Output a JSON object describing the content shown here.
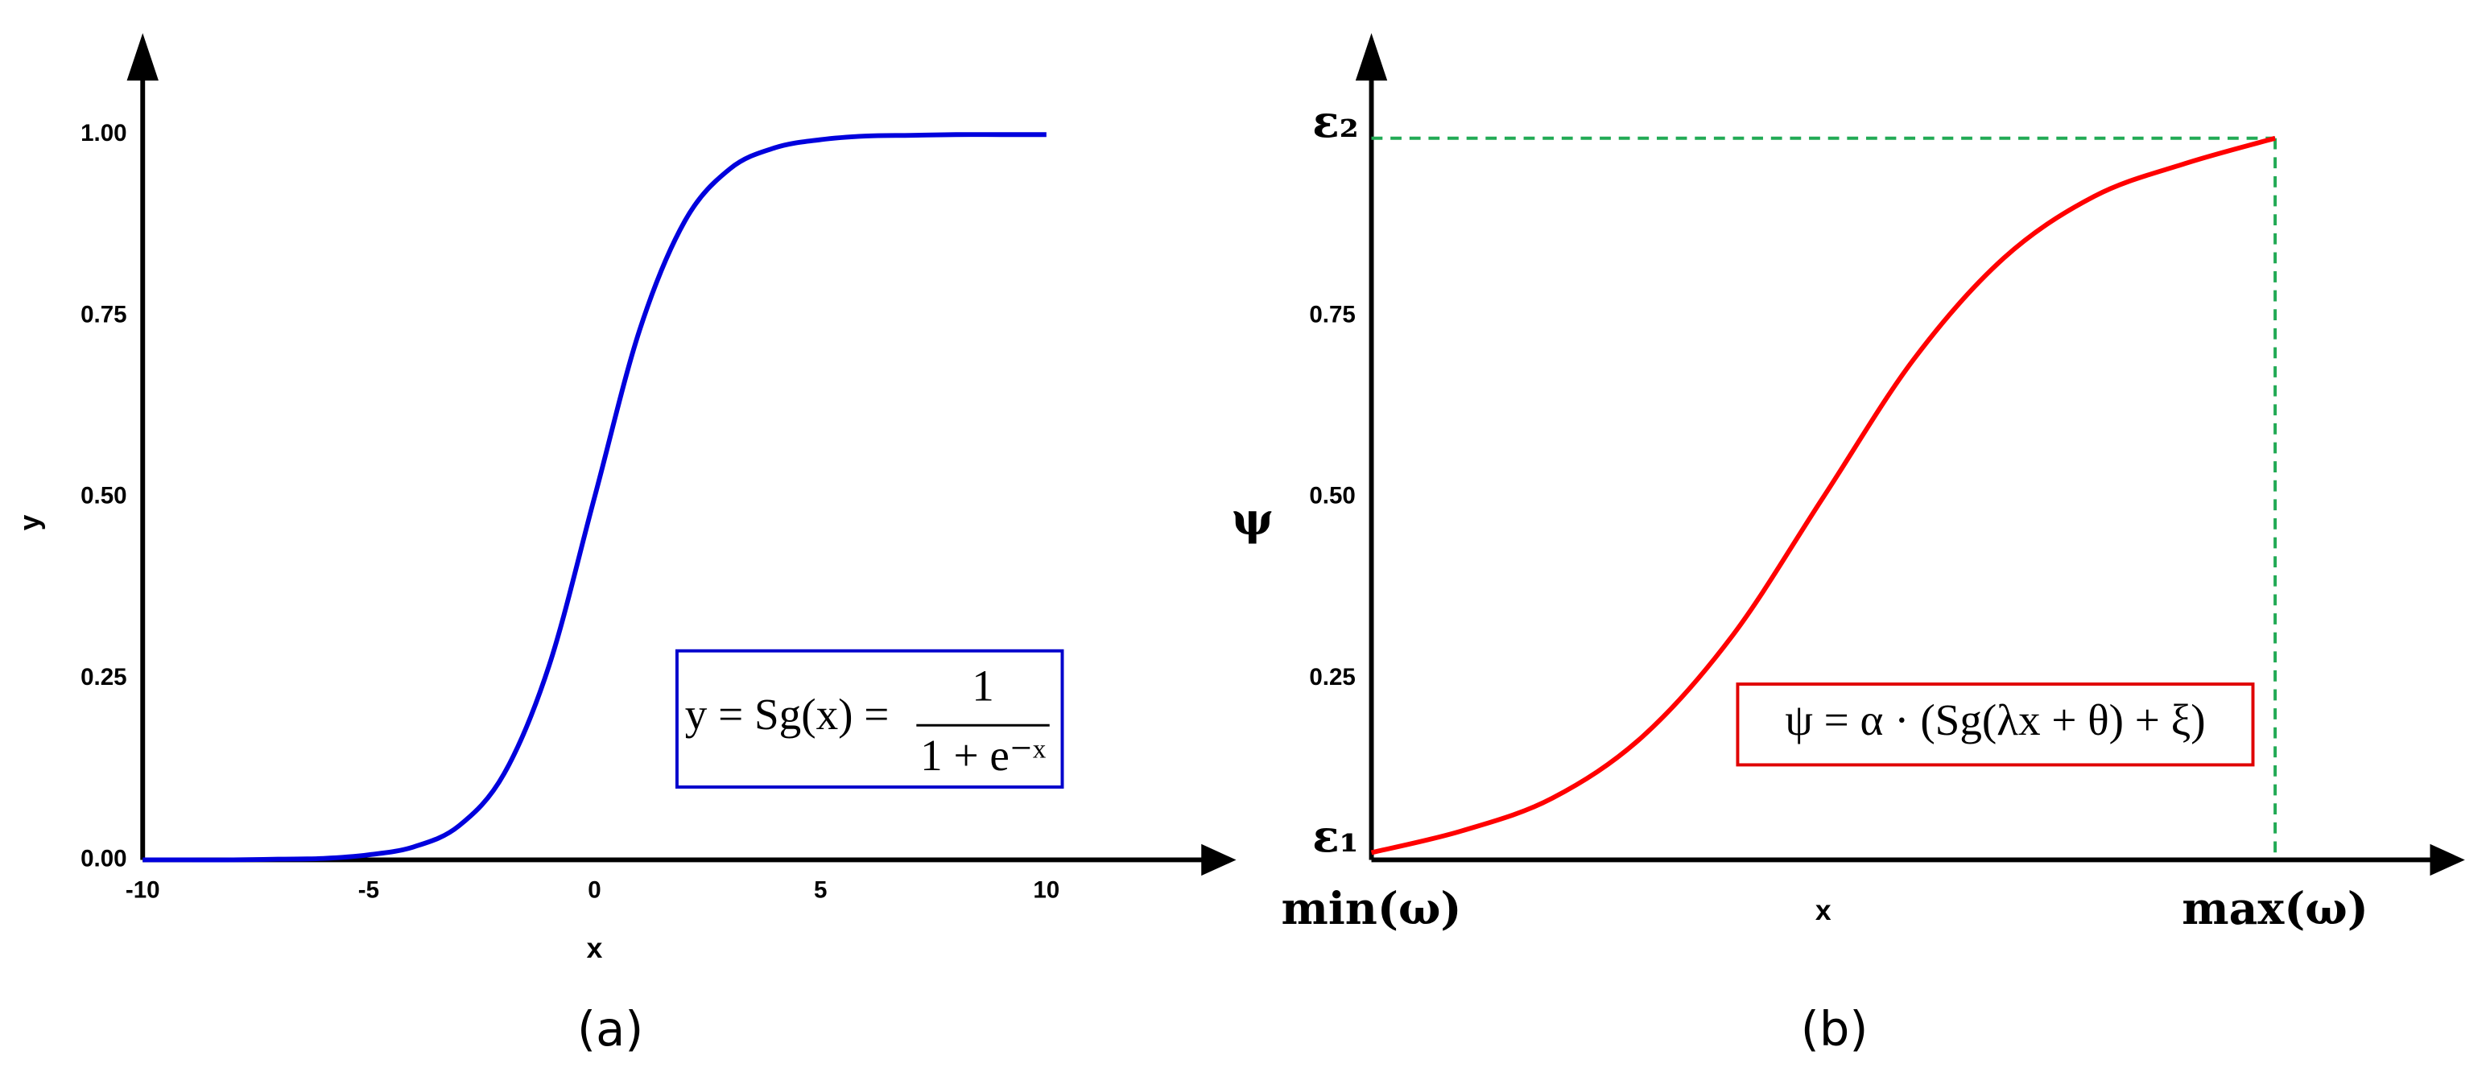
{
  "chart_data": [
    {
      "type": "line",
      "x": [
        -10,
        -9,
        -8,
        -7,
        -6,
        -5,
        -4,
        -3,
        -2,
        -1,
        0,
        1,
        2,
        3,
        4,
        5,
        6,
        7,
        8,
        9,
        10
      ],
      "values": [
        0.0,
        0.0,
        0.0,
        0.001,
        0.002,
        0.007,
        0.018,
        0.047,
        0.119,
        0.269,
        0.5,
        0.731,
        0.881,
        0.953,
        0.982,
        0.993,
        0.998,
        0.999,
        1.0,
        1.0,
        1.0
      ],
      "color": "#0000dd",
      "xlim": [
        -10,
        14.2
      ],
      "ylim": [
        0,
        1.14
      ],
      "xticks": [
        -10,
        -5,
        0,
        5,
        10
      ],
      "yticks": [
        {
          "value": 0,
          "label": "0.00"
        },
        0.25,
        {
          "value": 0.5,
          "label": "0.50"
        },
        0.75,
        {
          "value": 1,
          "label": "1.00"
        }
      ],
      "x_label": "x",
      "y_label": "y",
      "formula": {
        "lhs": "y = Sg(x) =",
        "numerator": "1",
        "denominator": "1 + e⁻ˣ"
      },
      "formula_color": "#0000cc",
      "caption": "(a)"
    },
    {
      "type": "line",
      "x": [
        0,
        0.1,
        0.2,
        0.3,
        0.4,
        0.5,
        0.6,
        0.7,
        0.8,
        0.9,
        1
      ],
      "values": [
        0.01,
        0.04,
        0.085,
        0.17,
        0.31,
        0.5,
        0.69,
        0.83,
        0.915,
        0.96,
        0.995
      ],
      "color": "#ff0000",
      "xlim": [
        0,
        1.21
      ],
      "ylim": [
        0,
        1.14
      ],
      "xticks": [
        {
          "value": 0,
          "label": "min(ω)"
        },
        {
          "value": 1,
          "label": "max(ω)"
        }
      ],
      "yticks": [
        {
          "value": 0.01,
          "label": "ε₁"
        },
        0.25,
        {
          "value": 0.5,
          "label": "0.50"
        },
        0.75,
        {
          "value": 0.995,
          "label": "ε₂"
        }
      ],
      "x_label": "x",
      "y_label": "ψ",
      "formula": {
        "lhs": "ψ = α · (Sg(λx + θ) + ξ)"
      },
      "formula_color": "#e00000",
      "guide_color": "#22aa55",
      "caption": "(b)"
    }
  ]
}
